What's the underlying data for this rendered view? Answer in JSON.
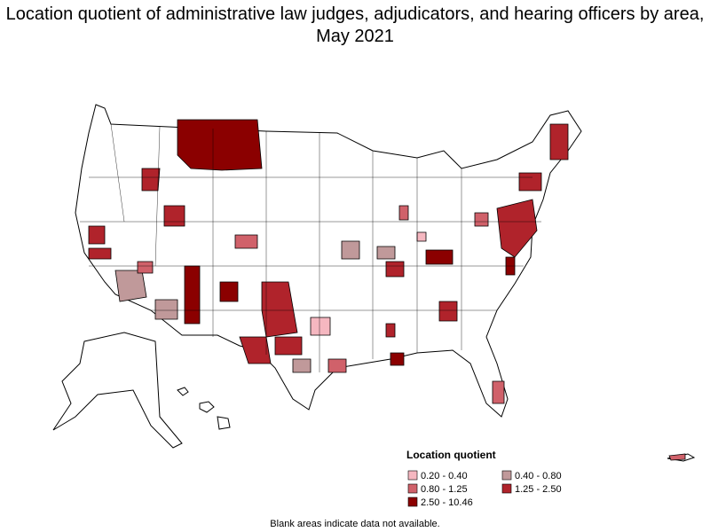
{
  "title": "Location quotient of administrative law judges, adjudicators, and hearing officers by area, May 2021",
  "legend": {
    "title": "Location quotient",
    "items": [
      {
        "label": "0.20 - 0.40",
        "color": "#f5b7c0"
      },
      {
        "label": "0.40 - 0.80",
        "color": "#c0999a"
      },
      {
        "label": "0.80 - 1.25",
        "color": "#d0616a"
      },
      {
        "label": "1.25 - 2.50",
        "color": "#b0232b"
      },
      {
        "label": "2.50 - 10.46",
        "color": "#8b0000"
      }
    ]
  },
  "note": "Blank areas indicate data not available."
}
